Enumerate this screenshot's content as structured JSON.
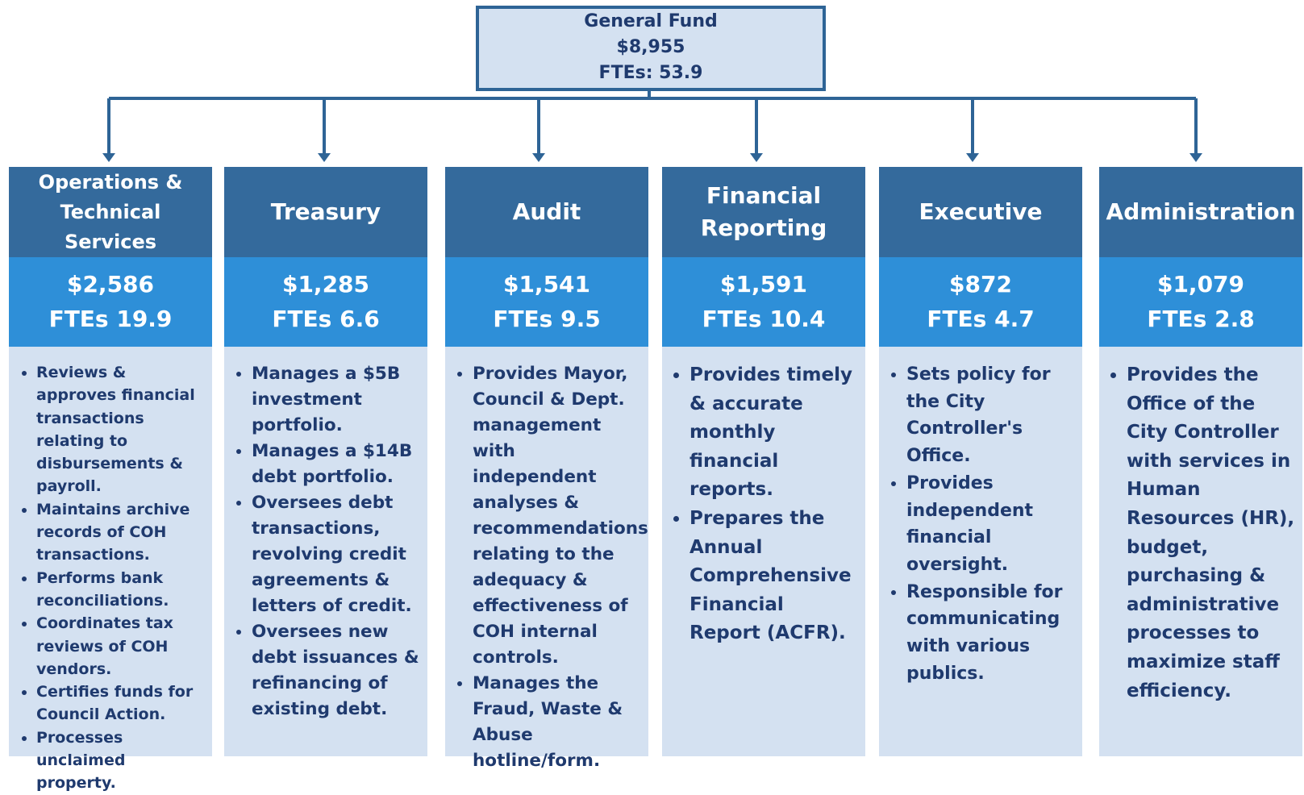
{
  "root": {
    "title": "General Fund",
    "amount": "$8,955",
    "ftes": "FTEs: 53.9"
  },
  "departments": [
    {
      "name": "Operations & Technical Services",
      "amount": "$2,586",
      "ftes": "FTEs 19.9",
      "bullets": [
        "Reviews & approves financial transactions relating to disbursements & payroll.",
        "Maintains archive records of COH transactions.",
        "Performs bank reconciliations.",
        "Coordinates tax reviews of COH vendors.",
        "Certifies funds for Council Action.",
        "Processes unclaimed property."
      ]
    },
    {
      "name": "Treasury",
      "amount": "$1,285",
      "ftes": "FTEs 6.6",
      "bullets": [
        "Manages a $5B investment portfolio.",
        "Manages a $14B debt portfolio.",
        "Oversees debt transactions, revolving credit agreements & letters of credit.",
        "Oversees new debt issuances & refinancing of existing debt."
      ]
    },
    {
      "name": "Audit",
      "amount": "$1,541",
      "ftes": "FTEs 9.5",
      "bullets": [
        "Provides Mayor, Council & Dept. management with independent analyses & recommendations relating to the adequacy & effectiveness of COH internal controls.",
        "Manages the Fraud, Waste & Abuse hotline/form."
      ]
    },
    {
      "name": "Financial Reporting",
      "amount": "$1,591",
      "ftes": "FTEs 10.4",
      "bullets": [
        "Provides timely & accurate monthly financial reports.",
        "Prepares the Annual Comprehensive Financial Report (ACFR)."
      ]
    },
    {
      "name": "Executive",
      "amount": "$872",
      "ftes": "FTEs 4.7",
      "bullets": [
        "Sets policy for the City Controller's Office.",
        "Provides independent financial oversight.",
        "Responsible for communicating with various publics."
      ]
    },
    {
      "name": "Administration",
      "amount": "$1,079",
      "ftes": "FTEs 2.8",
      "bullets": [
        "Provides the Office of the City Controller with services in Human Resources (HR), budget, purchasing & administrative processes to maximize staff efficiency."
      ]
    }
  ]
}
